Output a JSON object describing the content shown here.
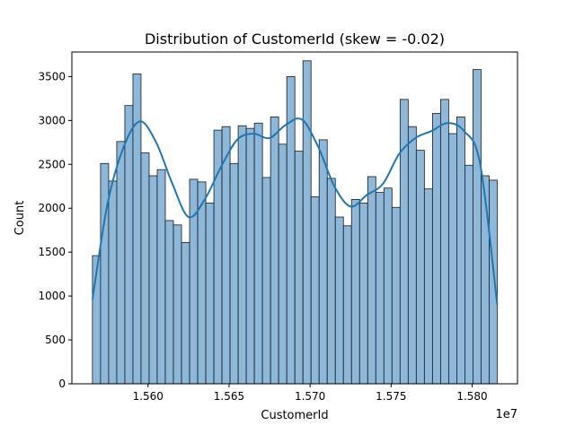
{
  "chart_data": {
    "type": "bar",
    "title": "Distribution of CustomerId (skew = -0.02)",
    "xlabel": "CustomerId",
    "ylabel": "Count",
    "x_offset_label": "1e7",
    "xlim": [
      1.5553,
      1.5828
    ],
    "ylim": [
      0,
      3780
    ],
    "x_ticks": [
      1.56,
      1.565,
      1.57,
      1.575,
      1.58
    ],
    "x_tick_labels": [
      "1.560",
      "1.565",
      "1.570",
      "1.575",
      "1.580"
    ],
    "y_ticks": [
      0,
      500,
      1000,
      1500,
      2000,
      2500,
      3000,
      3500
    ],
    "y_tick_labels": [
      "0",
      "500",
      "1000",
      "1500",
      "2000",
      "2500",
      "3000",
      "3500"
    ],
    "bin_start": 1.55657,
    "bin_end": 1.58155,
    "bins": 50,
    "values": [
      1460,
      2510,
      2310,
      2760,
      3170,
      3530,
      2630,
      2370,
      2440,
      1860,
      1810,
      1610,
      2330,
      2300,
      2060,
      2890,
      2930,
      2510,
      2940,
      2910,
      2970,
      2350,
      3040,
      2730,
      3500,
      2650,
      3680,
      2130,
      2780,
      2340,
      1900,
      1800,
      2100,
      2060,
      2360,
      2180,
      2230,
      2010,
      3240,
      2930,
      2660,
      2220,
      3080,
      3240,
      2850,
      3040,
      2490,
      3580,
      2370,
      2320
    ],
    "kde": {
      "x": [
        1.55657,
        1.5575,
        1.5585,
        1.5595,
        1.5605,
        1.5615,
        1.5625,
        1.5635,
        1.5645,
        1.5655,
        1.5665,
        1.5675,
        1.5685,
        1.5695,
        1.5705,
        1.5715,
        1.5725,
        1.5735,
        1.5745,
        1.5755,
        1.5765,
        1.5775,
        1.5785,
        1.5795,
        1.5805,
        1.58155
      ],
      "y": [
        960,
        2050,
        2700,
        2990,
        2750,
        2280,
        1900,
        2100,
        2470,
        2780,
        2850,
        2800,
        2950,
        3010,
        2700,
        2250,
        2020,
        2150,
        2280,
        2620,
        2800,
        2880,
        2970,
        2880,
        2500,
        900
      ]
    },
    "colors": {
      "bar_fill": "#8db8da",
      "bar_edge": "#1a1a1a",
      "kde_line": "#1f77b4",
      "axes": "#000000"
    },
    "grid": false,
    "legend": "none"
  }
}
